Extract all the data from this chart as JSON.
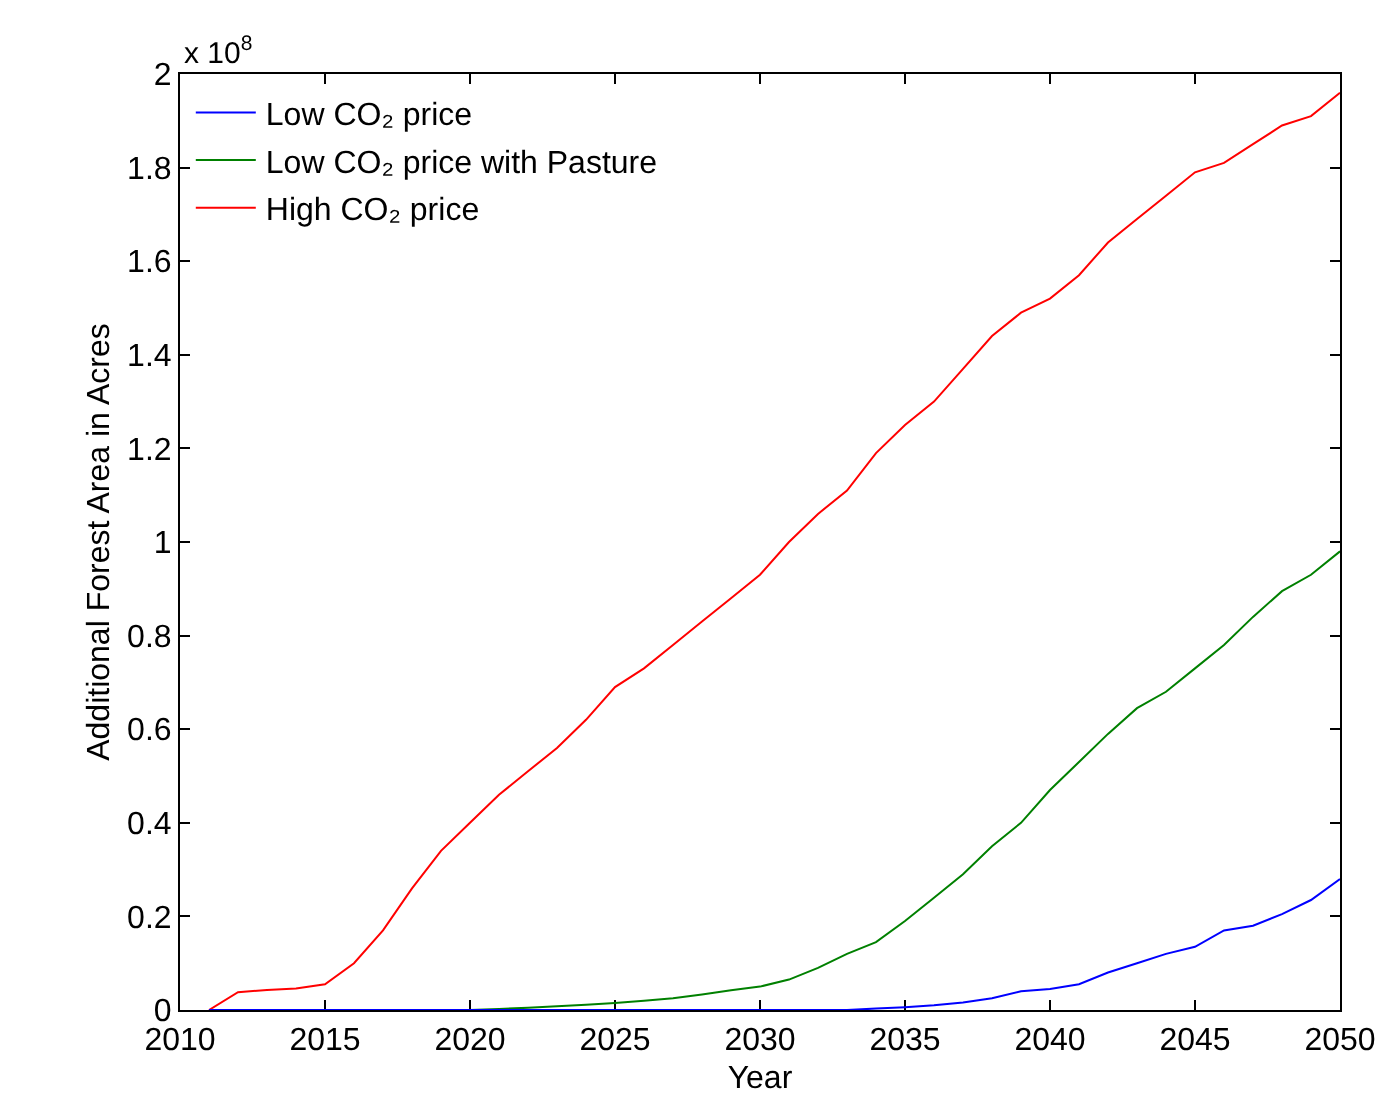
{
  "chart_data": {
    "type": "line",
    "xlabel": "Year",
    "ylabel": "Additional Forest Area in Acres",
    "annotations": [
      "x 10$^{8}$"
    ],
    "x": [
      2011,
      2012,
      2013,
      2014,
      2015,
      2016,
      2017,
      2018,
      2019,
      2020,
      2021,
      2022,
      2023,
      2024,
      2025,
      2026,
      2027,
      2028,
      2029,
      2030,
      2031,
      2032,
      2033,
      2034,
      2035,
      2036,
      2037,
      2038,
      2039,
      2040,
      2041,
      2042,
      2043,
      2044,
      2045,
      2046,
      2047,
      2048,
      2049,
      2050
    ],
    "series": [
      {
        "name": "Low CO₂ price",
        "color": "#0000ff",
        "values": [
          0,
          0,
          0,
          0,
          0,
          0,
          0,
          0,
          0,
          0,
          0,
          0,
          0,
          0,
          0,
          0,
          0,
          0,
          0,
          0,
          0,
          0,
          0,
          0.003,
          0.006,
          0.01,
          0.016,
          0.025,
          0.04,
          0.045,
          0.055,
          0.08,
          0.1,
          0.12,
          0.135,
          0.17,
          0.18,
          0.205,
          0.235,
          0.28
        ]
      },
      {
        "name": "Low CO₂ price with Pasture",
        "color": "#008000",
        "values": [
          null,
          null,
          null,
          null,
          null,
          null,
          null,
          null,
          0,
          0,
          0.002,
          0.005,
          0.008,
          0.011,
          0.015,
          0.02,
          0.025,
          0.033,
          0.042,
          0.05,
          0.065,
          0.09,
          0.12,
          0.145,
          0.19,
          0.24,
          0.29,
          0.35,
          0.4,
          0.47,
          0.53,
          0.59,
          0.645,
          0.68,
          0.73,
          0.78,
          0.84,
          0.895,
          0.93,
          0.98
        ]
      },
      {
        "name": "High CO₂ price",
        "color": "#ff0000",
        "values": [
          0,
          0.038,
          0.043,
          0.046,
          0.055,
          0.1,
          0.17,
          0.26,
          0.34,
          0.4,
          0.46,
          0.51,
          0.56,
          0.62,
          0.69,
          0.73,
          0.78,
          0.83,
          0.88,
          0.93,
          1.0,
          1.06,
          1.11,
          1.19,
          1.25,
          1.3,
          1.37,
          1.44,
          1.49,
          1.52,
          1.57,
          1.64,
          1.69,
          1.74,
          1.79,
          1.81,
          1.85,
          1.89,
          1.91,
          1.96
        ]
      }
    ],
    "xlim": [
      2010,
      2050
    ],
    "xticks": [
      2010,
      2015,
      2020,
      2025,
      2030,
      2035,
      2040,
      2045,
      2050
    ],
    "ylim": [
      0,
      2
    ],
    "yticks": [
      0,
      0.2,
      0.4,
      0.6,
      0.8,
      1,
      1.2,
      1.4,
      1.6,
      1.8,
      2
    ],
    "grid": false,
    "legend": "top left",
    "marker": "none",
    "line_style": "solid"
  }
}
